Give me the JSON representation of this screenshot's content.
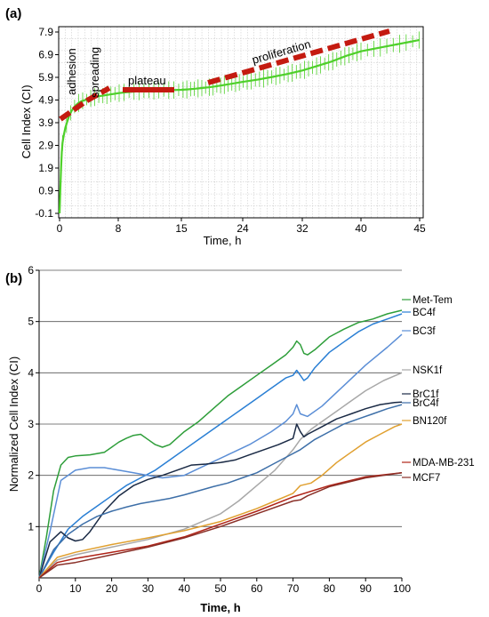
{
  "chart_data": [
    {
      "panel": "(a)",
      "type": "line",
      "xlabel": "Time, h",
      "ylabel": "Cell Index (CI)",
      "x_ticks": [
        "0",
        "8",
        "15",
        "24",
        "32",
        "40",
        "45"
      ],
      "y_ticks": [
        "-0.1",
        "0.9",
        "1.9",
        "2.9",
        "3.9",
        "4.9",
        "5.9",
        "6.9",
        "7.9"
      ],
      "ylim": [
        -0.1,
        7.9
      ],
      "grid": true,
      "annotations": [
        "adhesion",
        "spreading",
        "plateau",
        "proliferation"
      ],
      "colors": {
        "series": "#4ed02a",
        "phase": "#c41a10"
      },
      "series": [
        {
          "x": [
            0,
            0.1,
            0.2,
            0.3,
            0.4,
            0.5,
            0.6,
            0.8,
            1,
            1.3,
            1.6,
            2,
            2.5,
            3,
            4,
            5,
            6,
            7,
            8,
            9,
            10,
            11,
            12,
            13,
            14,
            15,
            16,
            17,
            18,
            19,
            20,
            21,
            22,
            24,
            26,
            28,
            30,
            32,
            34,
            36,
            38,
            40,
            42,
            44,
            45
          ],
          "y": [
            -0.1,
            0.9,
            1.9,
            2.6,
            3.0,
            3.2,
            3.4,
            3.7,
            3.9,
            4.2,
            4.4,
            4.6,
            4.75,
            4.85,
            4.95,
            5.05,
            5.1,
            5.15,
            5.2,
            5.25,
            5.28,
            5.3,
            5.32,
            5.33,
            5.34,
            5.35,
            5.37,
            5.4,
            5.43,
            5.46,
            5.5,
            5.55,
            5.6,
            5.7,
            5.8,
            5.92,
            6.05,
            6.2,
            6.4,
            6.6,
            6.85,
            7.05,
            7.25,
            7.45,
            7.55
          ]
        }
      ]
    },
    {
      "panel": "(b)",
      "type": "line",
      "xlabel": "Time, h",
      "ylabel": "Normalized Cell Index (CI)",
      "xlim": [
        0,
        100
      ],
      "ylim": [
        0,
        6
      ],
      "x_ticks": [
        "0",
        "10",
        "20",
        "30",
        "40",
        "50",
        "60",
        "70",
        "80",
        "90",
        "100"
      ],
      "y_ticks": [
        "1",
        "2",
        "3",
        "4",
        "5",
        "6"
      ],
      "grid": "horizontal",
      "legend": "right",
      "series": [
        {
          "name": "Met-Tem",
          "color": "#2e9e3a",
          "x": [
            0,
            2,
            4,
            6,
            8,
            10,
            14,
            18,
            20,
            22,
            24,
            26,
            28,
            30,
            32,
            34,
            36,
            40,
            44,
            48,
            52,
            56,
            60,
            64,
            68,
            70,
            71,
            72,
            73,
            74,
            76,
            80,
            84,
            88,
            92,
            96,
            100
          ],
          "y": [
            0,
            0.8,
            1.7,
            2.2,
            2.35,
            2.38,
            2.4,
            2.45,
            2.55,
            2.65,
            2.72,
            2.78,
            2.8,
            2.7,
            2.6,
            2.55,
            2.6,
            2.85,
            3.05,
            3.3,
            3.55,
            3.75,
            3.95,
            4.15,
            4.35,
            4.5,
            4.62,
            4.55,
            4.38,
            4.35,
            4.45,
            4.7,
            4.85,
            4.98,
            5.05,
            5.15,
            5.22
          ]
        },
        {
          "name": "BC4f",
          "color": "#2a7fd4",
          "x": [
            0,
            4,
            8,
            12,
            16,
            20,
            24,
            28,
            32,
            36,
            40,
            44,
            48,
            52,
            56,
            60,
            64,
            68,
            70,
            71,
            72,
            73,
            74,
            76,
            80,
            84,
            88,
            92,
            96,
            100
          ],
          "y": [
            0,
            0.5,
            0.95,
            1.2,
            1.4,
            1.6,
            1.8,
            1.95,
            2.1,
            2.3,
            2.5,
            2.7,
            2.9,
            3.1,
            3.3,
            3.5,
            3.7,
            3.9,
            3.95,
            4.05,
            3.95,
            3.85,
            3.9,
            4.1,
            4.4,
            4.6,
            4.8,
            4.95,
            5.05,
            5.15
          ]
        },
        {
          "name": "BC3f",
          "color": "#5b8ed6",
          "x": [
            0,
            3,
            6,
            10,
            14,
            18,
            22,
            26,
            30,
            34,
            40,
            46,
            52,
            58,
            64,
            68,
            70,
            71,
            72,
            74,
            78,
            84,
            90,
            96,
            100
          ],
          "y": [
            0,
            0.9,
            1.9,
            2.1,
            2.15,
            2.15,
            2.1,
            2.05,
            2.0,
            1.95,
            2.0,
            2.2,
            2.4,
            2.6,
            2.85,
            3.05,
            3.2,
            3.38,
            3.2,
            3.15,
            3.35,
            3.75,
            4.15,
            4.5,
            4.75
          ]
        },
        {
          "name": "NSK1f",
          "color": "#a8a8a8",
          "x": [
            0,
            5,
            10,
            20,
            30,
            40,
            50,
            55,
            60,
            65,
            70,
            72,
            75,
            80,
            85,
            90,
            95,
            100
          ],
          "y": [
            0,
            0.35,
            0.45,
            0.6,
            0.75,
            0.95,
            1.25,
            1.5,
            1.8,
            2.1,
            2.5,
            2.7,
            2.9,
            3.15,
            3.4,
            3.65,
            3.85,
            4.0
          ]
        },
        {
          "name": "BrC1f",
          "color": "#1a2a45",
          "x": [
            0,
            3,
            6,
            8,
            10,
            12,
            14,
            18,
            22,
            26,
            30,
            34,
            38,
            42,
            46,
            50,
            54,
            58,
            62,
            66,
            70,
            71,
            72,
            73,
            74,
            78,
            82,
            86,
            90,
            94,
            98,
            100
          ],
          "y": [
            0,
            0.7,
            0.9,
            0.78,
            0.72,
            0.75,
            0.9,
            1.3,
            1.6,
            1.8,
            1.92,
            2.0,
            2.1,
            2.2,
            2.22,
            2.25,
            2.3,
            2.4,
            2.5,
            2.6,
            2.72,
            3.0,
            2.85,
            2.75,
            2.8,
            2.95,
            3.1,
            3.2,
            3.3,
            3.38,
            3.42,
            3.43
          ]
        },
        {
          "name": "BrC4f",
          "color": "#3d6fa8",
          "x": [
            0,
            4,
            8,
            12,
            16,
            20,
            24,
            28,
            32,
            36,
            40,
            44,
            48,
            52,
            56,
            60,
            64,
            68,
            72,
            76,
            80,
            84,
            88,
            92,
            96,
            100
          ],
          "y": [
            0,
            0.55,
            0.85,
            1.05,
            1.2,
            1.3,
            1.38,
            1.45,
            1.5,
            1.55,
            1.62,
            1.7,
            1.78,
            1.85,
            1.95,
            2.05,
            2.2,
            2.35,
            2.5,
            2.7,
            2.85,
            3.0,
            3.1,
            3.2,
            3.3,
            3.38
          ]
        },
        {
          "name": "BN120f",
          "color": "#e0a030",
          "x": [
            0,
            5,
            10,
            20,
            30,
            40,
            50,
            60,
            65,
            70,
            72,
            75,
            78,
            82,
            86,
            90,
            94,
            98,
            100
          ],
          "y": [
            0,
            0.4,
            0.5,
            0.65,
            0.78,
            0.92,
            1.1,
            1.35,
            1.5,
            1.65,
            1.8,
            1.85,
            2.0,
            2.25,
            2.45,
            2.65,
            2.8,
            2.95,
            3.0
          ]
        },
        {
          "name": "MDA-MB-231",
          "color": "#b02418",
          "x": [
            0,
            5,
            10,
            20,
            30,
            40,
            50,
            60,
            70,
            80,
            90,
            100
          ],
          "y": [
            0,
            0.3,
            0.38,
            0.5,
            0.62,
            0.8,
            1.05,
            1.3,
            1.58,
            1.8,
            1.97,
            2.05
          ]
        },
        {
          "name": "MCF7",
          "color": "#8a3028",
          "x": [
            0,
            5,
            10,
            20,
            30,
            40,
            50,
            60,
            70,
            72,
            74,
            80,
            90,
            100
          ],
          "y": [
            0,
            0.25,
            0.3,
            0.45,
            0.6,
            0.78,
            1.0,
            1.25,
            1.5,
            1.52,
            1.6,
            1.78,
            1.95,
            2.05
          ]
        }
      ]
    }
  ]
}
